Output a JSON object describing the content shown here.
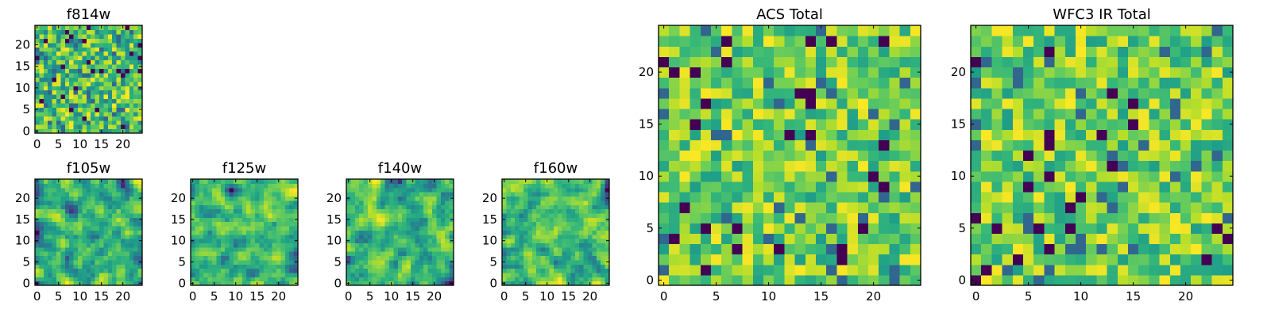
{
  "chart_data": [
    {
      "type": "heatmap",
      "title": "f814w",
      "colormap": "viridis",
      "grid_size": [
        25,
        25
      ],
      "xticks": [
        0,
        5,
        10,
        15,
        20
      ],
      "yticks": [
        0,
        5,
        10,
        15,
        20
      ],
      "xlim": [
        0,
        25
      ],
      "ylim": [
        0,
        25
      ],
      "vlim": [
        0,
        1
      ],
      "texture": "noise",
      "pattern_seed": 11
    },
    {
      "type": "heatmap",
      "title": "f105w",
      "colormap": "viridis",
      "grid_size": [
        25,
        25
      ],
      "xticks": [
        0,
        5,
        10,
        15,
        20
      ],
      "yticks": [
        0,
        5,
        10,
        15,
        20
      ],
      "xlim": [
        0,
        25
      ],
      "ylim": [
        0,
        25
      ],
      "vlim": [
        0,
        1
      ],
      "texture": "smooth",
      "pattern_seed": 23
    },
    {
      "type": "heatmap",
      "title": "f125w",
      "colormap": "viridis",
      "grid_size": [
        25,
        25
      ],
      "xticks": [
        0,
        5,
        10,
        15,
        20
      ],
      "yticks": [
        0,
        5,
        10,
        15,
        20
      ],
      "xlim": [
        0,
        25
      ],
      "ylim": [
        0,
        25
      ],
      "vlim": [
        0,
        1
      ],
      "texture": "smooth",
      "pattern_seed": 37
    },
    {
      "type": "heatmap",
      "title": "f140w",
      "colormap": "viridis",
      "grid_size": [
        25,
        25
      ],
      "xticks": [
        0,
        5,
        10,
        15,
        20
      ],
      "yticks": [
        0,
        5,
        10,
        15,
        20
      ],
      "xlim": [
        0,
        25
      ],
      "ylim": [
        0,
        25
      ],
      "vlim": [
        0,
        1
      ],
      "texture": "smooth",
      "pattern_seed": 41
    },
    {
      "type": "heatmap",
      "title": "f160w",
      "colormap": "viridis",
      "grid_size": [
        25,
        25
      ],
      "xticks": [
        0,
        5,
        10,
        15,
        20
      ],
      "yticks": [
        0,
        5,
        10,
        15,
        20
      ],
      "xlim": [
        0,
        25
      ],
      "ylim": [
        0,
        25
      ],
      "vlim": [
        0,
        1
      ],
      "texture": "smooth",
      "pattern_seed": 53
    },
    {
      "type": "heatmap",
      "title": "ACS Total",
      "colormap": "viridis",
      "grid_size": [
        25,
        25
      ],
      "xticks": [
        0,
        5,
        10,
        15,
        20
      ],
      "yticks": [
        0,
        5,
        10,
        15,
        20
      ],
      "xlim": [
        0,
        25
      ],
      "ylim": [
        0,
        25
      ],
      "vlim": [
        0,
        1
      ],
      "texture": "noise-bright",
      "pattern_seed": 67
    },
    {
      "type": "heatmap",
      "title": "WFC3 IR Total",
      "colormap": "viridis",
      "grid_size": [
        25,
        25
      ],
      "xticks": [
        0,
        5,
        10,
        15,
        20
      ],
      "yticks": [
        0,
        5,
        10,
        15,
        20
      ],
      "xlim": [
        0,
        25
      ],
      "ylim": [
        0,
        25
      ],
      "vlim": [
        0,
        1
      ],
      "texture": "noise-bright",
      "pattern_seed": 79
    }
  ]
}
